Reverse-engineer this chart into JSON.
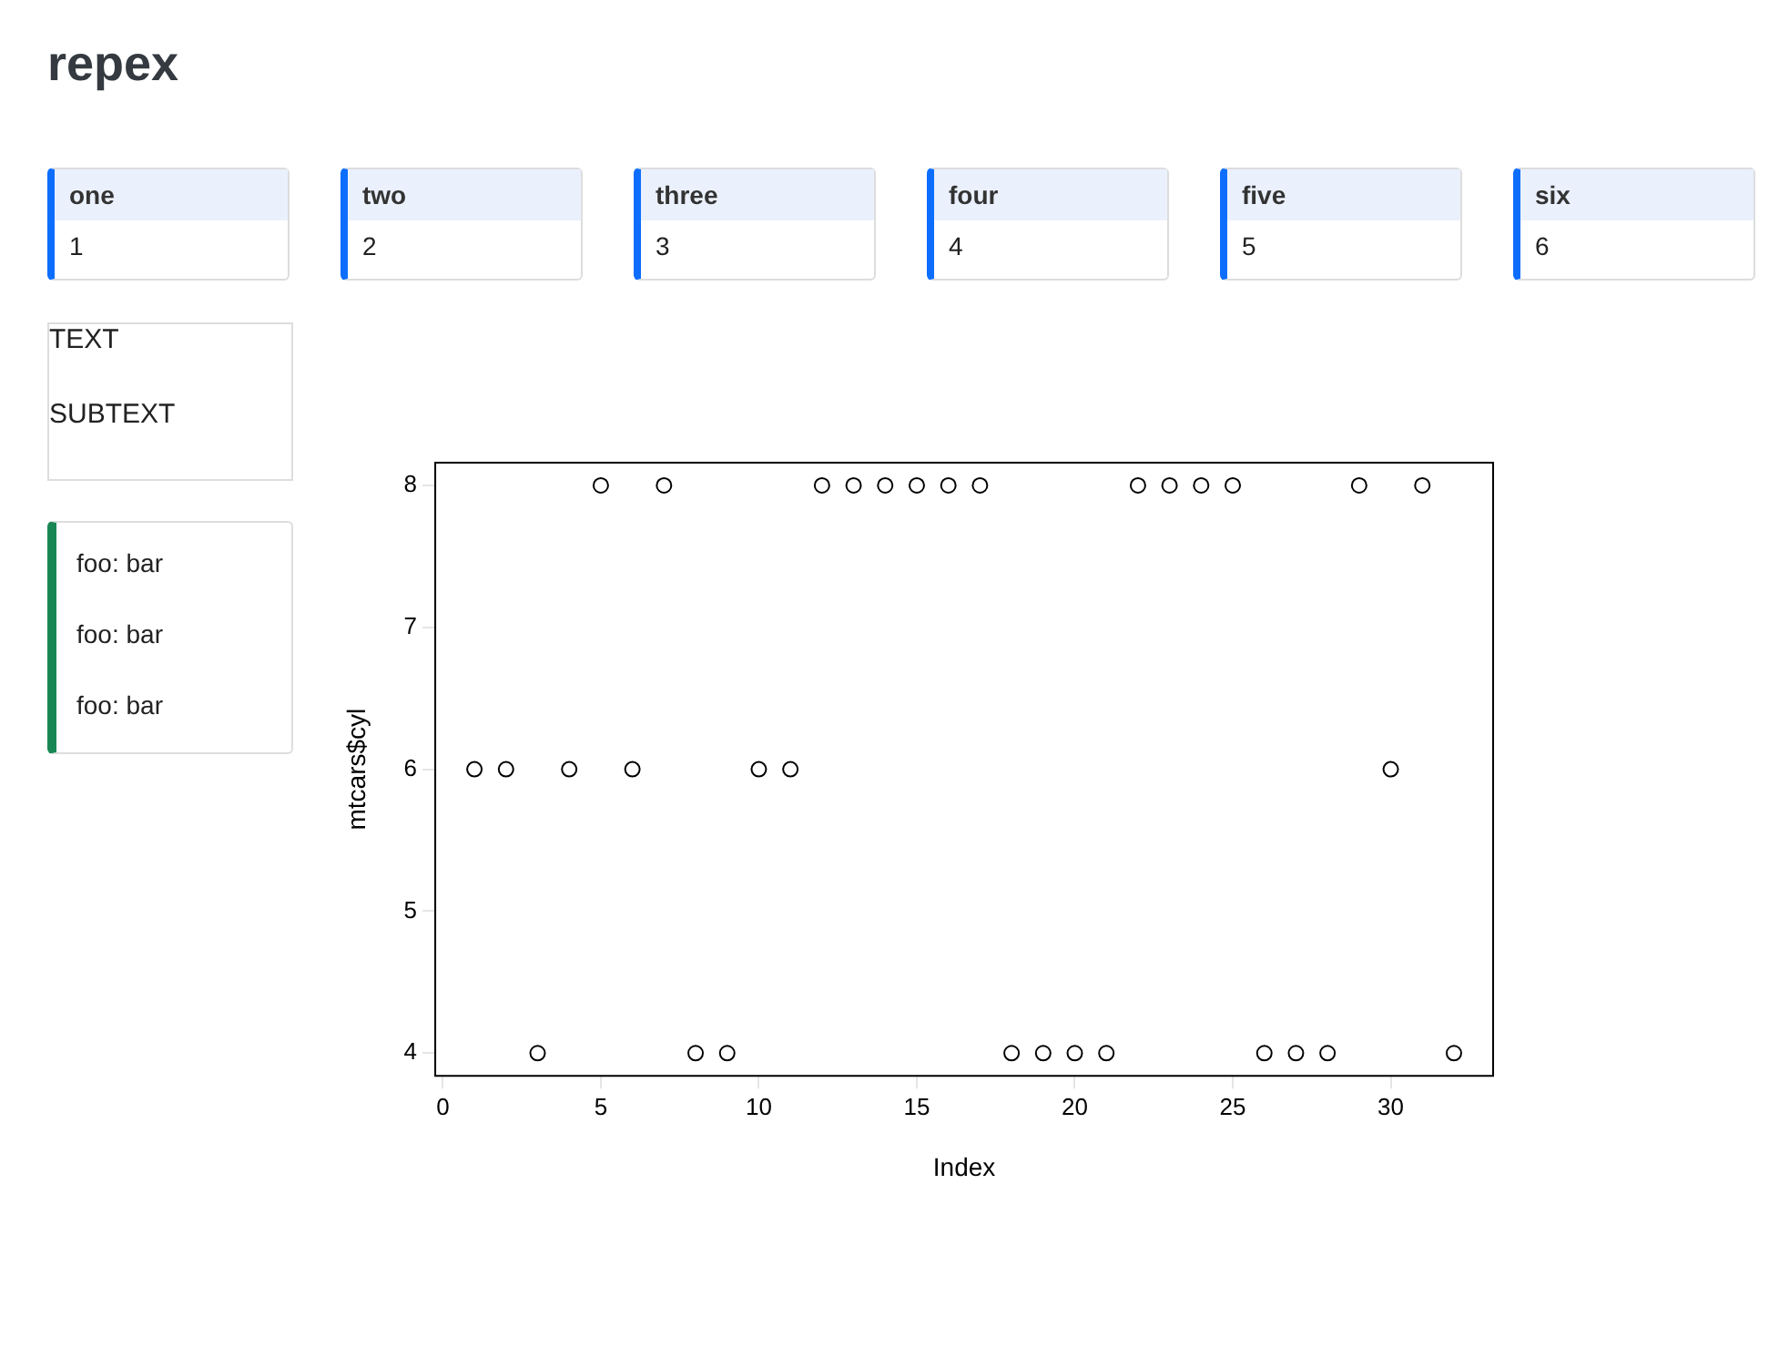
{
  "chart_data": [
    {
      "type": "other",
      "title": "repex"
    },
    {
      "type": "other",
      "title": "one",
      "annotations": [
        "1"
      ]
    },
    {
      "type": "other",
      "title": "two",
      "annotations": [
        "2"
      ]
    },
    {
      "type": "other",
      "title": "three",
      "annotations": [
        "3"
      ]
    },
    {
      "type": "other",
      "title": "four",
      "annotations": [
        "4"
      ]
    },
    {
      "type": "other",
      "title": "five",
      "annotations": [
        "5"
      ]
    },
    {
      "type": "other",
      "title": "six",
      "annotations": [
        "6"
      ]
    },
    {
      "type": "other",
      "annotations": [
        "TEXT",
        "SUBTEXT"
      ]
    },
    {
      "type": "other",
      "annotations": [
        "foo: bar",
        "foo: bar",
        "foo: bar"
      ]
    },
    {
      "type": "scatter",
      "xlabel": "Index",
      "ylabel": "mtcars$cyl",
      "marker": "circle",
      "grid": false,
      "legend": false,
      "x": [
        1,
        2,
        3,
        4,
        5,
        6,
        7,
        8,
        9,
        10,
        11,
        12,
        13,
        14,
        15,
        16,
        17,
        18,
        19,
        20,
        21,
        22,
        23,
        24,
        25,
        26,
        27,
        28,
        29,
        30,
        31,
        32
      ],
      "series": [
        {
          "color": "#000000",
          "values": [
            6,
            6,
            4,
            6,
            8,
            6,
            8,
            4,
            4,
            6,
            6,
            8,
            8,
            8,
            8,
            8,
            8,
            4,
            4,
            4,
            4,
            8,
            8,
            8,
            8,
            4,
            4,
            4,
            8,
            6,
            8,
            4
          ]
        }
      ],
      "xlim": [
        -0.24,
        33.24
      ],
      "ylim": [
        3.84,
        8.16
      ],
      "xticks": [
        0,
        5,
        10,
        15,
        20,
        25,
        30
      ],
      "yticks": [
        4,
        5,
        6,
        7,
        8
      ]
    }
  ]
}
